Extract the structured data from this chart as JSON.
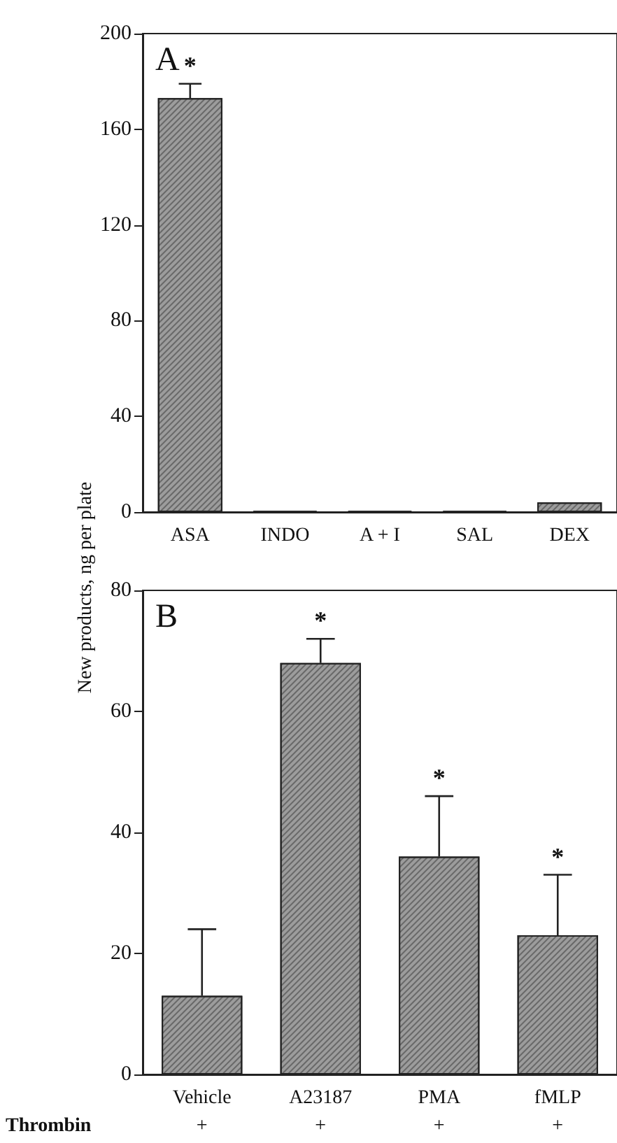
{
  "chart_data": [
    {
      "type": "bar",
      "title": "A",
      "ylabel": "New products, ng per plate",
      "categories": [
        "ASA",
        "INDO",
        "A + I",
        "SAL",
        "DEX"
      ],
      "series": [
        {
          "color": "#9c9c9c",
          "values": [
            173,
            0.5,
            0.5,
            0.5,
            4
          ],
          "errors": [
            [
              173,
              179
            ],
            null,
            null,
            null,
            null
          ]
        }
      ],
      "ylim": [
        0,
        200
      ],
      "yticks": [
        0,
        40,
        80,
        120,
        160,
        200
      ],
      "grid": false,
      "annotations": [
        {
          "text": "*",
          "x": "ASA",
          "y": 179
        }
      ]
    },
    {
      "type": "bar",
      "title": "B",
      "categories": [
        "Vehicle",
        "A23187",
        "PMA",
        "fMLP"
      ],
      "series": [
        {
          "color": "#9c9c9c",
          "values": [
            13,
            68,
            36,
            23
          ],
          "errors": [
            [
              13,
              24
            ],
            [
              68,
              72
            ],
            [
              36,
              46
            ],
            [
              23,
              33
            ]
          ]
        }
      ],
      "ylim": [
        0,
        80
      ],
      "yticks": [
        0,
        20,
        40,
        60,
        80
      ],
      "grid": false,
      "annotations": [
        {
          "text": "*",
          "x": "A23187",
          "y": 72
        },
        {
          "text": "*",
          "x": "PMA",
          "y": 46
        },
        {
          "text": "*",
          "x": "fMLP",
          "y": 33
        },
        "Thrombin",
        "+",
        "+",
        "+",
        "+"
      ]
    }
  ]
}
